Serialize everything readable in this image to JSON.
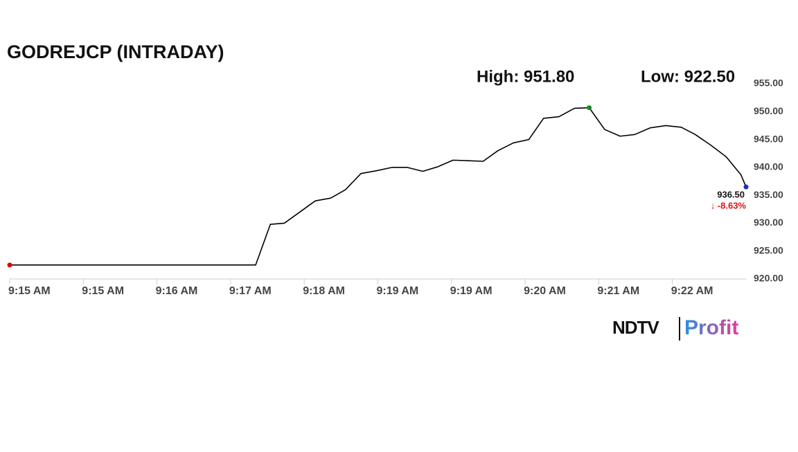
{
  "chart_data": {
    "type": "line",
    "title": "GODREJCP (INTRADAY)",
    "high_label": "High: 951.80",
    "low_label": "Low: 922.50",
    "last_label": "936.50",
    "change_label": "↓ -8.63%",
    "x": [
      0,
      3.34,
      3.54,
      3.73,
      3.94,
      4.15,
      4.36,
      4.56,
      4.77,
      4.98,
      5.19,
      5.4,
      5.61,
      5.81,
      6.02,
      6.23,
      6.43,
      6.63,
      6.84,
      7.05,
      7.25,
      7.46,
      7.67,
      7.87,
      8.08,
      8.29,
      8.49,
      8.7,
      8.91,
      9.12,
      9.31,
      9.52,
      9.73,
      9.93,
      10.0
    ],
    "values": [
      922.5,
      922.5,
      929.8,
      930.0,
      932.0,
      934.0,
      934.5,
      936.0,
      938.9,
      939.4,
      940.0,
      940.0,
      939.3,
      940.1,
      941.3,
      941.2,
      941.1,
      943.0,
      944.4,
      945.0,
      948.8,
      949.1,
      950.6,
      950.7,
      946.8,
      945.6,
      945.9,
      947.1,
      947.5,
      947.2,
      945.9,
      944.0,
      941.9,
      938.7,
      936.5
    ],
    "color": "#000000",
    "start_marker_color": "#e00000",
    "high_marker_color": "#1a8a1a",
    "end_marker_color": "#1c2fb8",
    "change_color": "#e01010",
    "xlim": [
      0,
      10
    ],
    "xticks": [
      {
        "value": 0,
        "label": "9:15 AM"
      },
      {
        "value": 1,
        "label": "9:15 AM"
      },
      {
        "value": 2,
        "label": "9:16 AM"
      },
      {
        "value": 3,
        "label": "9:17 AM"
      },
      {
        "value": 4,
        "label": "9:18 AM"
      },
      {
        "value": 5,
        "label": "9:19 AM"
      },
      {
        "value": 6,
        "label": "9:19 AM"
      },
      {
        "value": 7,
        "label": "9:20 AM"
      },
      {
        "value": 8,
        "label": "9:21 AM"
      },
      {
        "value": 9,
        "label": "9:22 AM"
      }
    ],
    "ylim": [
      920,
      955
    ],
    "yticks": [
      {
        "value": 920,
        "label": "920.00"
      },
      {
        "value": 925,
        "label": "925.00"
      },
      {
        "value": 930,
        "label": "930.00"
      },
      {
        "value": 935,
        "label": "935.00"
      },
      {
        "value": 940,
        "label": "940.00"
      },
      {
        "value": 945,
        "label": "945.00"
      },
      {
        "value": 950,
        "label": "950.00"
      },
      {
        "value": 955,
        "label": "955.00"
      }
    ],
    "grid": false,
    "logo": {
      "brand": "NDTV",
      "product": "Profit"
    }
  }
}
